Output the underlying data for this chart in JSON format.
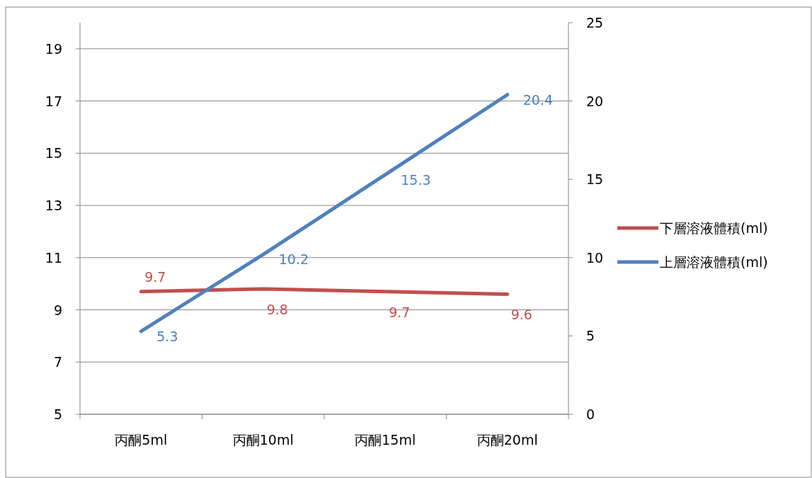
{
  "chart_data": {
    "type": "line",
    "categories": [
      "丙酮5ml",
      "丙酮10ml",
      "丙酮15ml",
      "丙酮20ml"
    ],
    "series": [
      {
        "name": "下層溶液體積(ml)",
        "color": "#c0504d",
        "values": [
          9.7,
          9.8,
          9.7,
          9.6
        ]
      },
      {
        "name": "上層溶液體積(ml)",
        "color": "#4f81bd",
        "values": [
          5.3,
          10.2,
          15.3,
          20.4
        ],
        "axis": "y2"
      }
    ],
    "ylim": [
      5,
      20
    ],
    "yticks": [
      5,
      7,
      9,
      11,
      13,
      15,
      17,
      19
    ],
    "y2lim": [
      0,
      25
    ],
    "y2ticks": [
      0,
      5,
      10,
      15,
      20,
      25
    ],
    "grid": "y",
    "legend": "right",
    "data_labels": true,
    "marker": "none",
    "line_style": "solid"
  }
}
